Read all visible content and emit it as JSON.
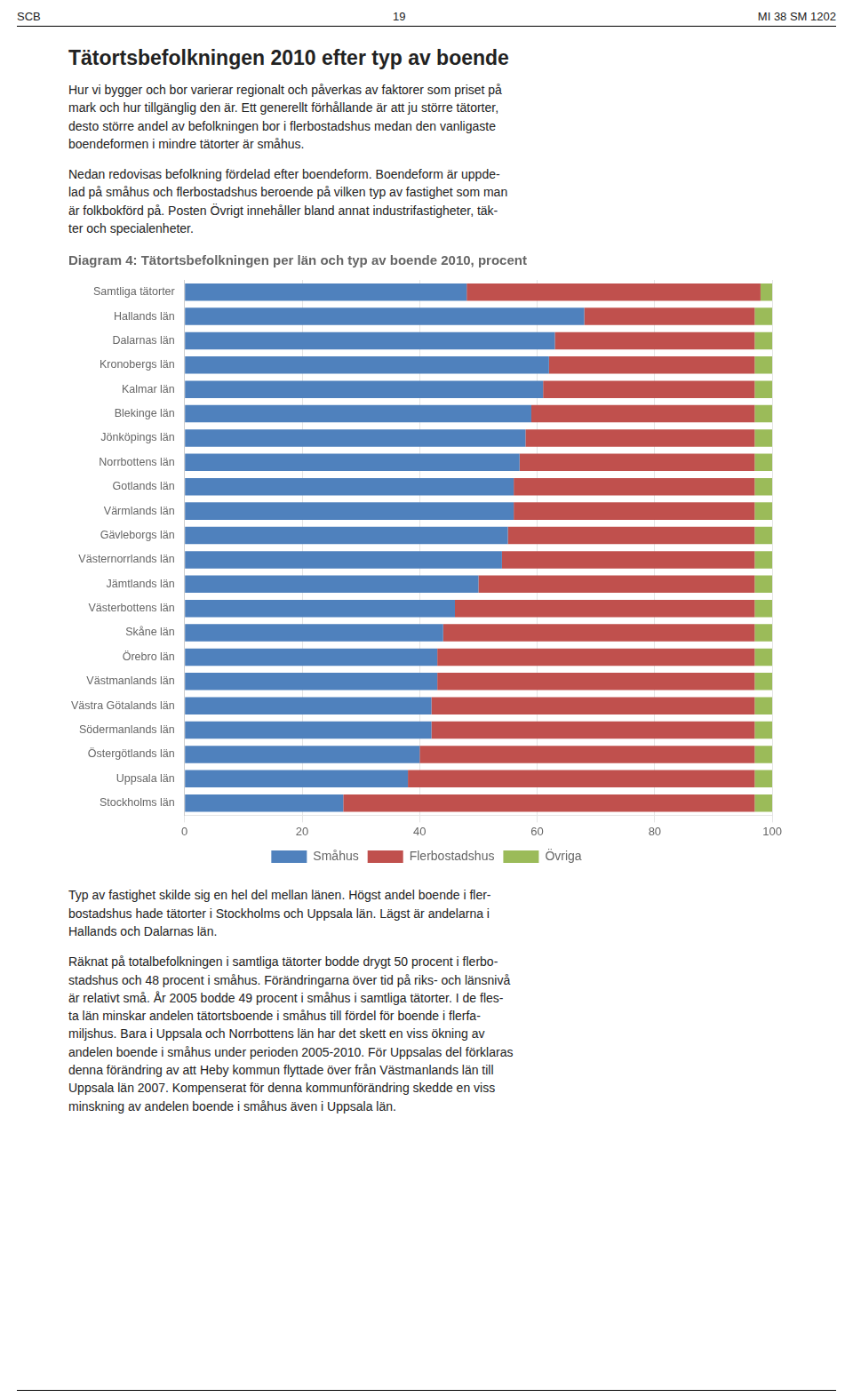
{
  "chart_data": {
    "type": "bar",
    "orientation": "horizontal",
    "stacked": true,
    "title": "Diagram 4: Tätortsbefolkningen per län och typ av boende 2010, procent",
    "annotations": [
      "SCB",
      "19",
      "MI 38 SM 1202",
      "Tätortsbefolkningen 2010 efter typ av boende",
      "Hur vi bygger och bor varierar regionalt och påverkas av faktorer som priset på\nmark och hur tillgänglig den är. Ett generellt förhållande är att ju större tätorter,\ndesto större andel av befolkningen bor i flerbostadshus medan den vanligaste\nboendeformen i mindre tätorter är småhus.",
      "Nedan redovisas befolkning fördelad efter boendeform. Boendeform är uppde-\nlad på småhus och flerbostadshus beroende på vilken typ av fastighet som man\när folkbokförd på. Posten Övrigt innehåller bland annat industrifastigheter, täk-\nter och specialenheter.",
      "Typ av fastighet skilde sig en hel del mellan länen. Högst andel boende i fler-\nbostadshus hade tätorter i Stockholms och Uppsala län. Lägst är andelarna i\nHallands och Dalarnas län.",
      "Räknat på totalbefolkningen i samtliga tätorter bodde drygt 50 procent i flerbo-\nstadshus och 48 procent i småhus. Förändringarna över tid på riks- och länsnivå\när relativt små. År 2005 bodde 49 procent i småhus i samtliga tätorter. I de fles-\nta län minskar andelen tätortsboende i småhus till fördel för boende i flerfa-\nmiljshus. Bara i Uppsala och Norrbottens län har det skett en viss ökning av\nandelen boende i småhus under perioden 2005-2010. För Uppsalas del förklaras\ndenna förändring av att Heby kommun flyttade över från Västmanlands län till\nUppsala län 2007. Kompenserat för denna kommunförändring skedde en viss\nminskning av andelen boende i småhus även i Uppsala län."
    ],
    "categories": [
      "Stockholms län",
      "Uppsala län",
      "Östergötlands län",
      "Södermanlands län",
      "Västra Götalands län",
      "Västmanlands län",
      "Örebro län",
      "Skåne län",
      "Västerbottens län",
      "Jämtlands län",
      "Västernorrlands län",
      "Gävleborgs län",
      "Värmlands län",
      "Gotlands län",
      "Norrbottens län",
      "Jönköpings län",
      "Blekinge län",
      "Kalmar län",
      "Kronobergs län",
      "Dalarnas län",
      "Hallands län",
      "Samtliga tätorter"
    ],
    "series": [
      {
        "name": "Småhus",
        "color": "#4F81BD",
        "values": [
          27,
          38,
          40,
          42,
          42,
          43,
          43,
          44,
          46,
          50,
          54,
          55,
          56,
          56,
          57,
          58,
          59,
          61,
          62,
          63,
          68,
          48
        ]
      },
      {
        "name": "Flerbostadshus",
        "color": "#C0504D",
        "values": [
          70,
          59,
          57,
          55,
          55,
          54,
          54,
          53,
          51,
          47,
          43,
          42,
          41,
          41,
          40,
          39,
          38,
          36,
          35,
          34,
          29,
          50
        ]
      },
      {
        "name": "Övriga",
        "color": "#9BBB59",
        "values": [
          3,
          3,
          3,
          3,
          3,
          3,
          3,
          3,
          3,
          3,
          3,
          3,
          3,
          3,
          3,
          3,
          3,
          3,
          3,
          3,
          3,
          2
        ]
      }
    ],
    "xlim": [
      0,
      100
    ],
    "xticks": [
      0,
      20,
      40,
      60,
      80,
      100
    ],
    "grid": true,
    "legend": "bottom"
  }
}
